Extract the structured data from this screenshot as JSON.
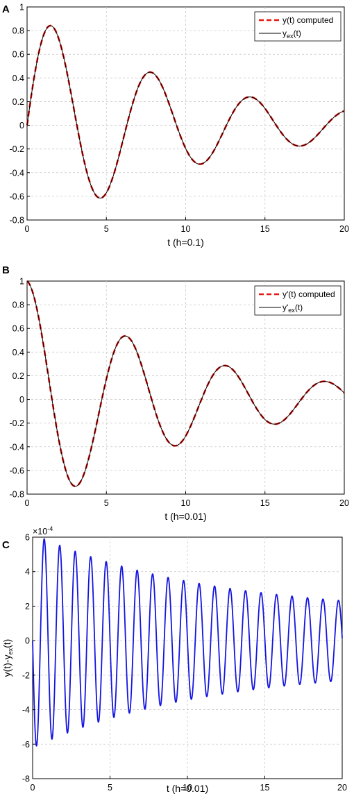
{
  "chart_data": [
    {
      "panel": "A",
      "type": "line",
      "xlabel": "t  (h=0.1)",
      "xlim": [
        0,
        20
      ],
      "ylim": [
        -0.8,
        1
      ],
      "xticks": [
        "0",
        "5",
        "10",
        "15",
        "20"
      ],
      "yticks": [
        "-0.8",
        "-0.6",
        "-0.4",
        "-0.2",
        "0",
        "0.2",
        "0.4",
        "0.6",
        "0.8",
        "1"
      ],
      "grid": true,
      "legend_position": "top-right",
      "model": {
        "func": "sin",
        "amplitude": 0.98,
        "decay": 0.1,
        "omega": 1.0
      },
      "extrema": [
        [
          0,
          0
        ],
        [
          1.5,
          0.86
        ],
        [
          4.6,
          -0.62
        ],
        [
          7.8,
          0.46
        ],
        [
          10.9,
          -0.33
        ],
        [
          14.1,
          0.24
        ],
        [
          17.2,
          -0.18
        ],
        [
          20,
          0.12
        ]
      ],
      "series": [
        {
          "name": "y(t) computed",
          "style": "dashed",
          "color": "#e8140e"
        },
        {
          "name_main": "y",
          "name_sub": "ex",
          "name_tail": "(t)",
          "style": "solid",
          "color": "#000000"
        }
      ]
    },
    {
      "panel": "B",
      "type": "line",
      "xlabel": "t (h=0.01)",
      "xlim": [
        0,
        20
      ],
      "ylim": [
        -0.8,
        1
      ],
      "xticks": [
        "0",
        "5",
        "10",
        "15",
        "20"
      ],
      "yticks": [
        "-0.8",
        "-0.6",
        "-0.4",
        "-0.2",
        "0",
        "0.2",
        "0.4",
        "0.6",
        "0.8",
        "1"
      ],
      "grid": true,
      "legend_position": "top-right",
      "model": {
        "func": "cos",
        "amplitude": 1.0,
        "decay": 0.1,
        "omega": 1.0
      },
      "extrema": [
        [
          0,
          1.0
        ],
        [
          3.0,
          -0.74
        ],
        [
          6.1,
          0.55
        ],
        [
          9.3,
          -0.4
        ],
        [
          12.4,
          0.29
        ],
        [
          15.6,
          -0.21
        ],
        [
          18.7,
          0.16
        ],
        [
          20,
          0.05
        ]
      ],
      "series": [
        {
          "name": "y'(t) computed",
          "style": "dashed",
          "color": "#e8140e"
        },
        {
          "name_main": "y'",
          "name_sub": "ex",
          "name_tail": "(t)",
          "style": "solid",
          "color": "#000000"
        }
      ]
    },
    {
      "panel": "C",
      "type": "line",
      "xlabel": "t (h=0.01)",
      "ylabel_main": "y(t)-y",
      "ylabel_sub": "ex",
      "ylabel_tail": "(t)",
      "scale_base": "×10",
      "scale_exp": "-4",
      "xlim": [
        0,
        20
      ],
      "ylim": [
        -8,
        6
      ],
      "xticks": [
        "0",
        "5",
        "10",
        "15",
        "20"
      ],
      "yticks": [
        "-8",
        "-6",
        "-4",
        "-2",
        "0",
        "2",
        "4",
        "6"
      ],
      "grid": true,
      "model": {
        "func": "error",
        "amplitude": 6.2,
        "decay": 0.09,
        "omega": 6.28
      },
      "extrema": [
        [
          0.25,
          -6.0
        ],
        [
          0.75,
          5.8
        ],
        [
          1.25,
          -5.5
        ],
        [
          1.75,
          5.25
        ],
        [
          20,
          0.0
        ]
      ],
      "series": [
        {
          "style": "solid",
          "color": "#1515e0"
        }
      ]
    }
  ]
}
